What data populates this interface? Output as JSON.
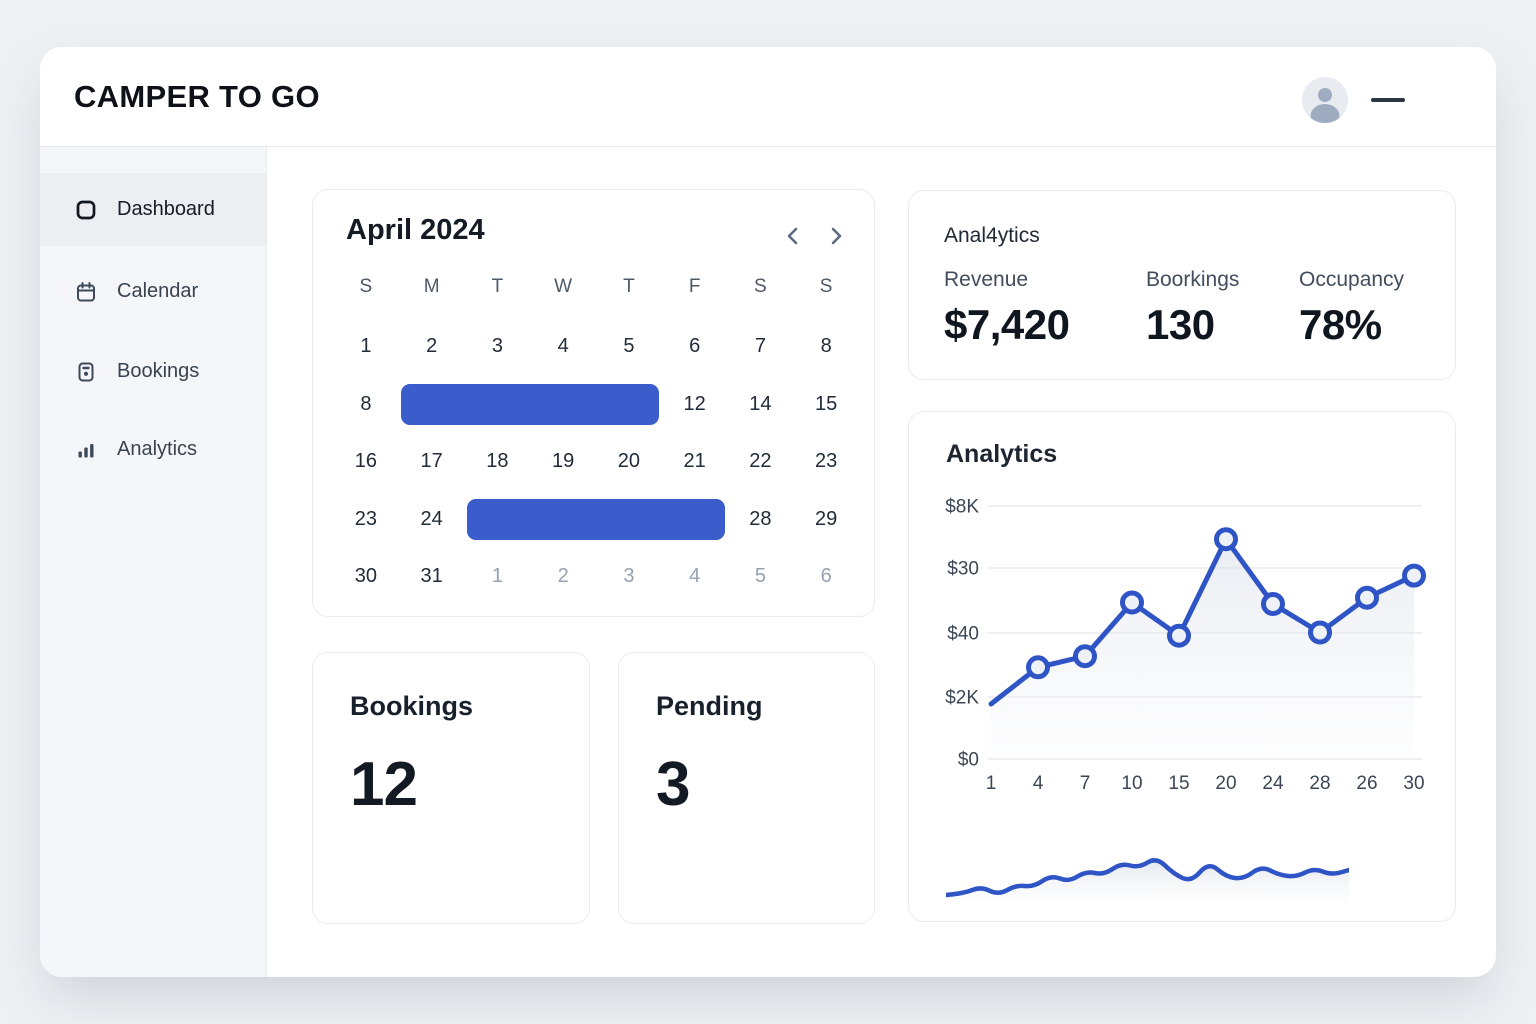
{
  "app": {
    "title": "CAMPER TO GO"
  },
  "header": {
    "icons": {
      "avatar": "user-avatar-icon",
      "menu": "menu-dash-icon"
    }
  },
  "sidebar": {
    "items": [
      {
        "label": "Dashboard",
        "icon": "dashboard-icon",
        "active": true
      },
      {
        "label": "Calendar",
        "icon": "calendar-icon",
        "active": false
      },
      {
        "label": "Bookings",
        "icon": "bookings-icon",
        "active": false
      },
      {
        "label": "Analytics",
        "icon": "analytics-icon",
        "active": false
      }
    ]
  },
  "calendar": {
    "title": "April 2024",
    "prev_icon": "chevron-left-icon",
    "next_icon": "chevron-right-icon",
    "day_headers": [
      "S",
      "M",
      "T",
      "W",
      "T",
      "F",
      "S",
      "S"
    ],
    "weeks": [
      [
        "1",
        "2",
        "3",
        "4",
        "5",
        "6",
        "7",
        "8"
      ],
      [
        "8",
        "",
        "",
        "",
        "",
        "12",
        "14",
        "15"
      ],
      [
        "16",
        "17",
        "18",
        "19",
        "20",
        "21",
        "22",
        "23"
      ],
      [
        "23",
        "24",
        "",
        "",
        "",
        "",
        "28",
        "29"
      ],
      [
        "30",
        "31",
        "1",
        "2",
        "3",
        "4",
        "5",
        "6"
      ]
    ],
    "muted_cells": [
      [
        4,
        2
      ],
      [
        4,
        3
      ],
      [
        4,
        4
      ],
      [
        4,
        5
      ],
      [
        4,
        6
      ],
      [
        4,
        7
      ]
    ],
    "selection_bars": [
      {
        "week": 1,
        "col_start": 1,
        "col_end": 4
      },
      {
        "week": 3,
        "col_start": 2,
        "col_end": 5
      }
    ]
  },
  "stats": {
    "title": "Anal4ytics",
    "metrics": [
      {
        "label": "Revenue",
        "value": "$7,420"
      },
      {
        "label": "Boorkings",
        "value": "130"
      },
      {
        "label": "Occupancy",
        "value": "78%"
      }
    ]
  },
  "cards": {
    "bookings": {
      "label": "Bookings",
      "value": "12"
    },
    "pending": {
      "label": "Pending",
      "value": "3"
    }
  },
  "chart_data": {
    "type": "line",
    "title": "Analytics",
    "x_labels": [
      "1",
      "4",
      "7",
      "10",
      "15",
      "20",
      "24",
      "28",
      "26",
      "30"
    ],
    "y_tick_labels": [
      "$8K",
      "$30",
      "$40",
      "$2K",
      "$0"
    ],
    "ylim": [
      0,
      8000
    ],
    "grid": true,
    "legend": "none",
    "series": [
      {
        "name": "Revenue",
        "values": [
          1740,
          2900,
          3250,
          4950,
          3900,
          6950,
          4900,
          4000,
          5100,
          5800
        ]
      }
    ],
    "marker_skip_first": true,
    "sparkline": {
      "type": "area",
      "values": [
        0.1,
        0.13,
        0.27,
        0.1,
        0.3,
        0.26,
        0.5,
        0.36,
        0.58,
        0.5,
        0.74,
        0.64,
        0.86,
        0.52,
        0.36,
        0.76,
        0.46,
        0.42,
        0.68,
        0.5,
        0.46,
        0.64,
        0.5,
        0.6
      ]
    }
  },
  "colors": {
    "accent_blue": "#3b5ccb",
    "line_blue": "#2e54c6",
    "marker_fill": "#eef1f6",
    "gridline": "#e8ecf1",
    "axis_text": "#3b4654",
    "page_bg": "#eef0f3",
    "sidebar_bg": "#f4f6f9",
    "sidebar_active_bg": "#eceef1",
    "text_dark": "#141a23",
    "text_gray": "#44505f",
    "muted_date": "#95a1b0"
  }
}
